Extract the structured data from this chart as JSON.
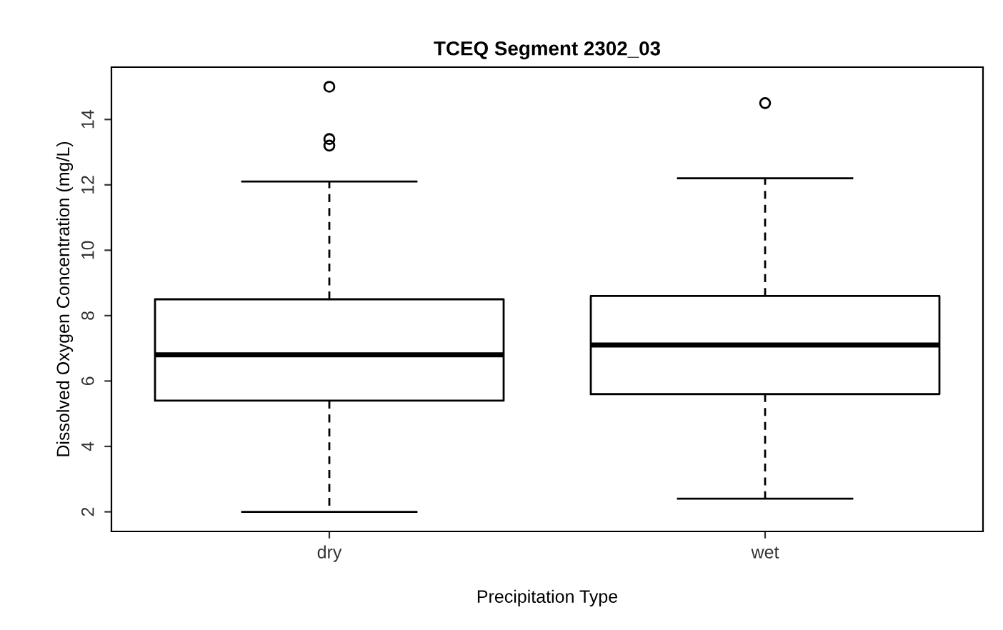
{
  "chart_data": {
    "type": "box",
    "title": "TCEQ Segment 2302_03",
    "xlabel": "Precipitation Type",
    "ylabel": "Dissolved Oxygen Concentration (mg/L)",
    "categories": [
      "dry",
      "wet"
    ],
    "boxes": [
      {
        "low": 2.0,
        "q1": 5.4,
        "median": 6.8,
        "q3": 8.5,
        "high": 12.1,
        "outliers": [
          15.0,
          13.4,
          13.2
        ]
      },
      {
        "low": 2.4,
        "q1": 5.6,
        "median": 7.1,
        "q3": 8.6,
        "high": 12.2,
        "outliers": [
          14.5
        ]
      }
    ],
    "ylim": [
      1.4,
      15.6
    ],
    "yticks": [
      2,
      4,
      6,
      8,
      10,
      12,
      14
    ],
    "grid": false,
    "legend": false
  }
}
